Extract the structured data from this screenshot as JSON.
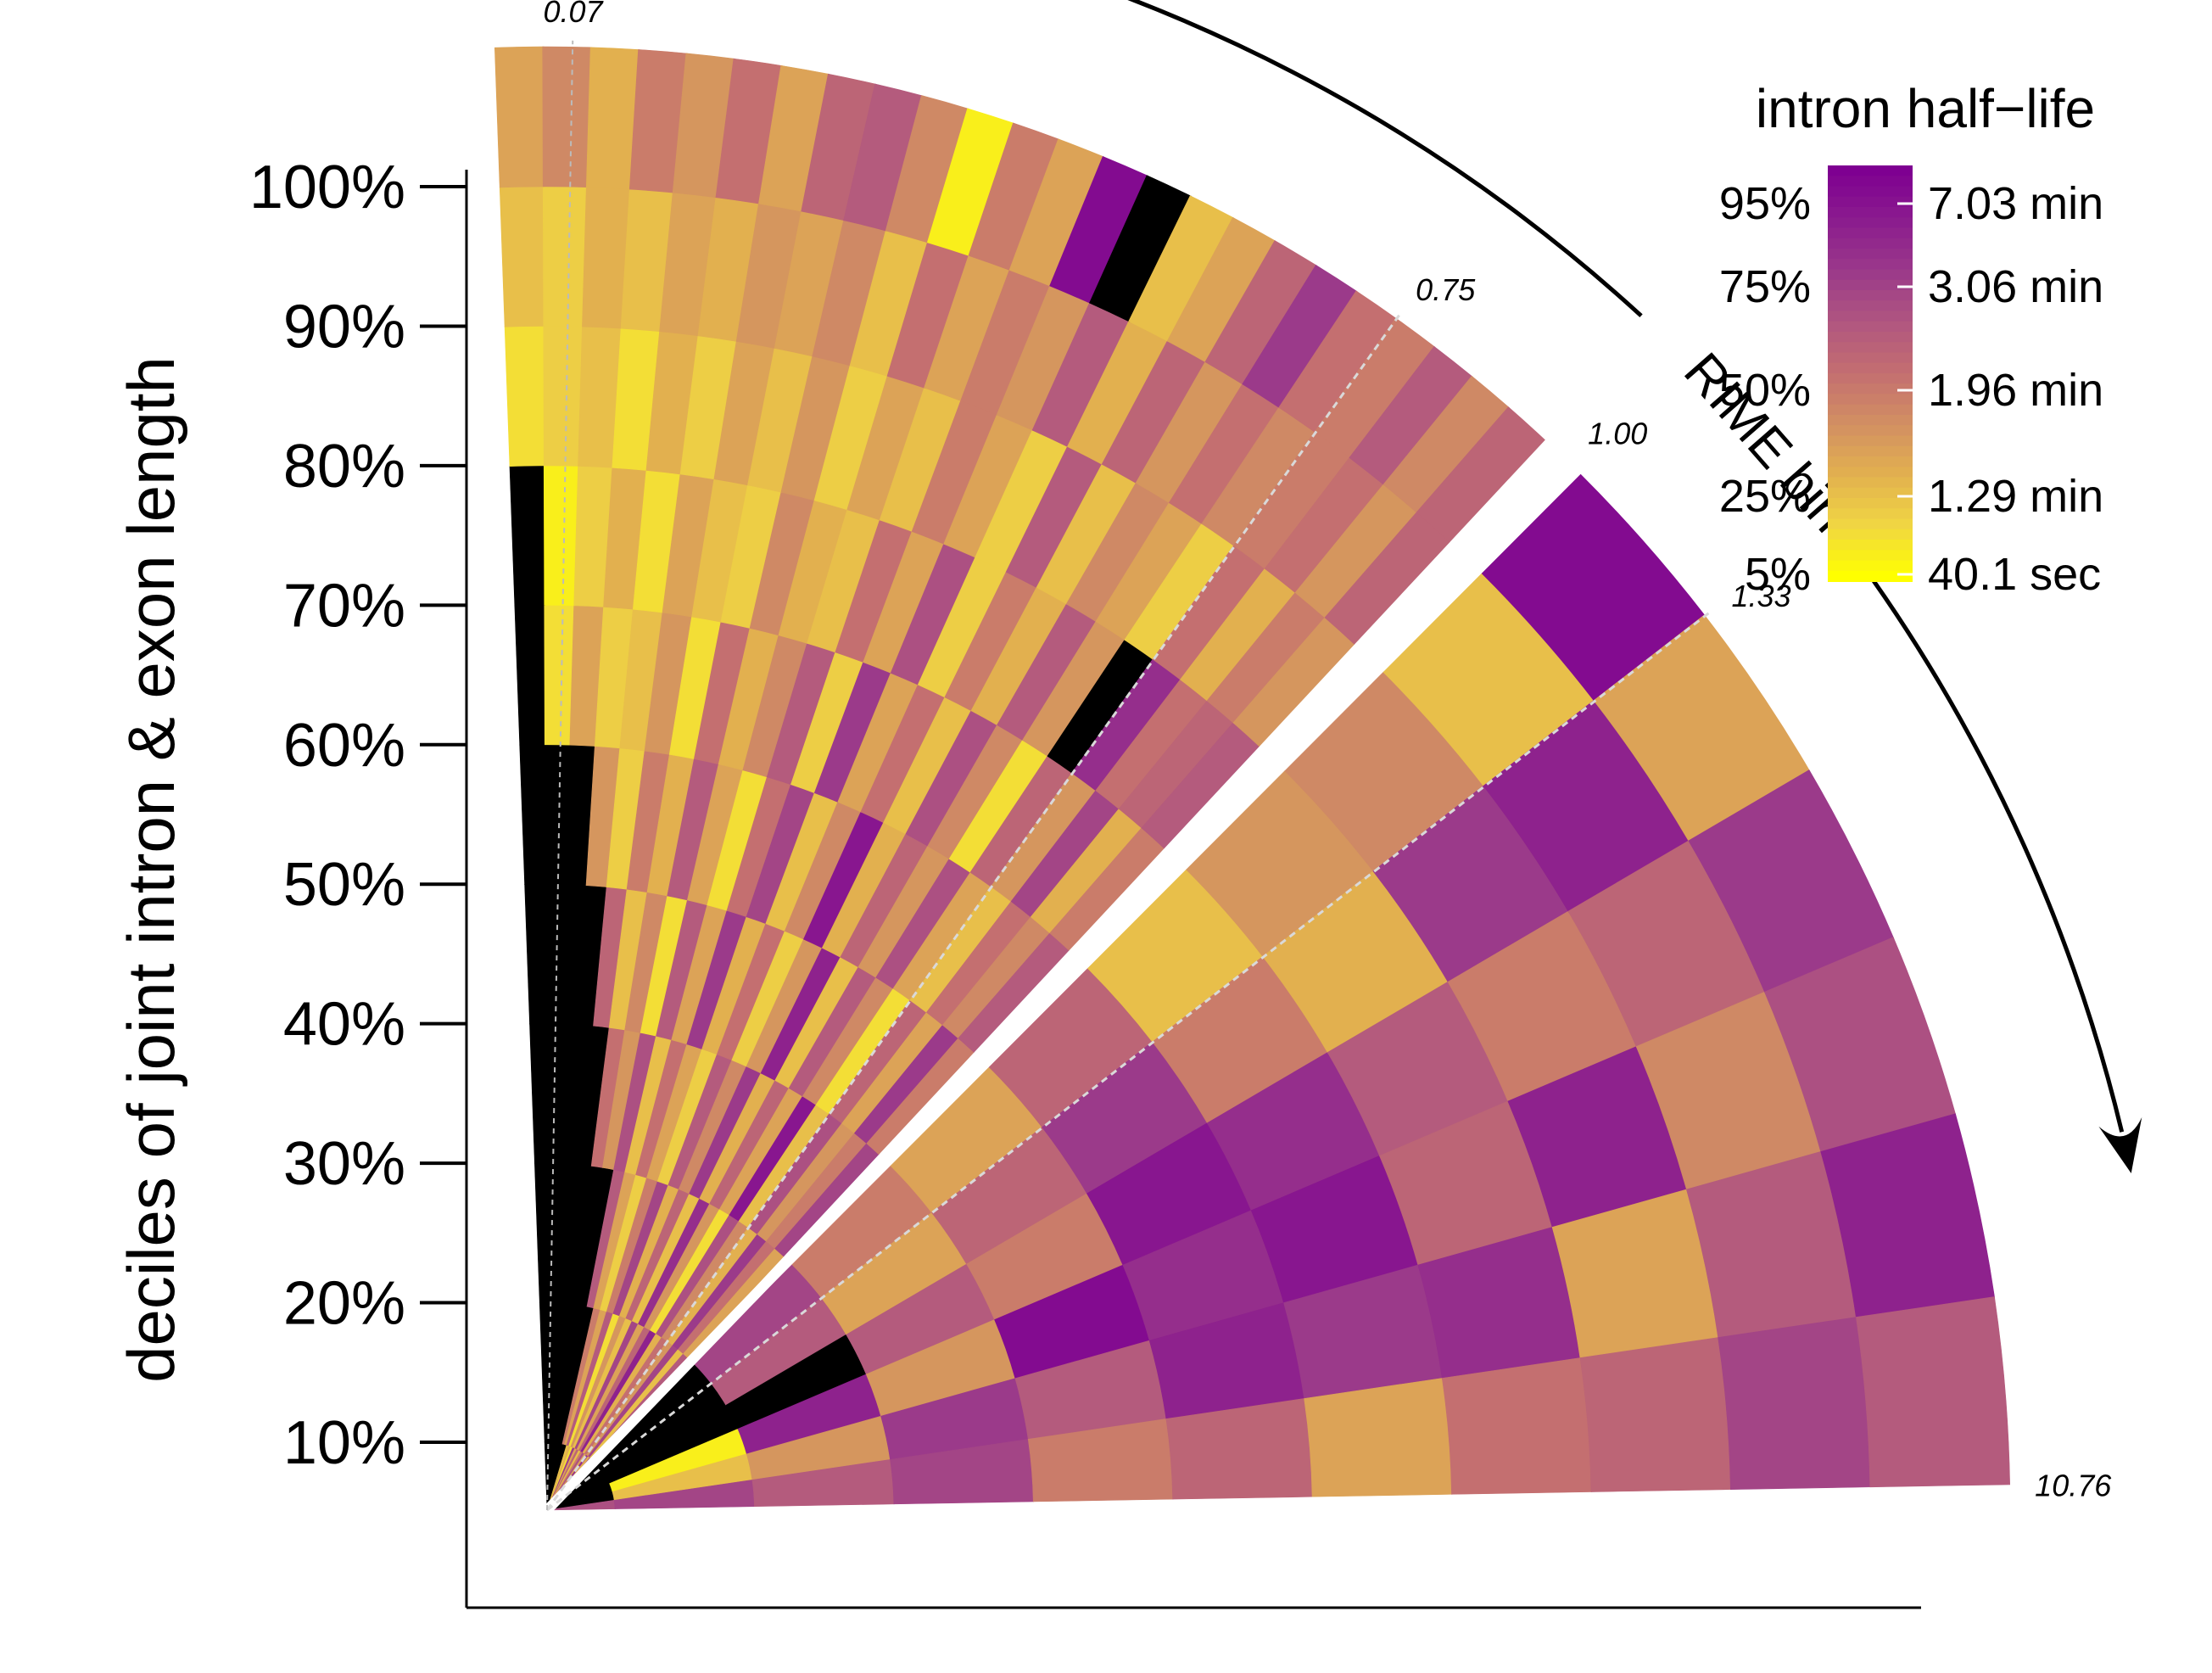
{
  "chart_data": {
    "type": "heatmap",
    "title": "",
    "ylabel": "deciles of joint intron & exon length",
    "y_ticks": [
      "10%",
      "20%",
      "30%",
      "40%",
      "50%",
      "60%",
      "70%",
      "80%",
      "90%",
      "100%"
    ],
    "angular_axis_label": "RIME bin",
    "bin_tick_labels": [
      "0.07",
      "0.75",
      "1.00",
      "1.33",
      "10.76"
    ],
    "bins_lt1": 24,
    "bins_gt1": 6,
    "rings": 11,
    "legend": {
      "title": "intron half−life",
      "percentiles": [
        "95%",
        "75%",
        "50%",
        "25%",
        "5%"
      ],
      "values": [
        "7.03 min",
        "3.06 min",
        "1.96 min",
        "1.29 min",
        "40.1 sec"
      ],
      "colormap": [
        "#ffff00",
        "#f0d643",
        "#e2b04f",
        "#d28f62",
        "#c46f70",
        "#b05680",
        "#9b3a8a",
        "#8b1c8e",
        "#7e0091"
      ],
      "colors": {
        "missing": "#000000",
        "split_line": "#ffffff"
      }
    },
    "cells": [
      [
        0,
        0,
        0,
        0,
        0,
        0,
        0,
        0,
        0,
        0,
        0.2,
        0.25,
        0.1,
        0.75,
        0.3,
        0.55,
        0.2,
        0.45,
        0.65,
        0.3,
        0.8,
        0.25,
        0.7,
        0.4
      ],
      [
        0,
        0,
        0,
        0,
        0,
        0,
        0,
        0,
        0.45,
        0.3,
        0.6,
        0.1,
        0.35,
        0.2,
        0.7,
        0.3,
        0.55,
        0.85,
        0.25,
        0.5,
        0.35,
        0.7,
        0.2,
        0.6
      ],
      [
        0,
        0,
        0,
        0,
        0,
        0,
        0,
        0.6,
        0.3,
        0.15,
        0.45,
        0.7,
        0.25,
        0.55,
        0.2,
        0.8,
        0.35,
        0.1,
        0.65,
        0.4,
        0.25,
        0.75,
        0.5,
        0.3
      ],
      [
        0,
        0,
        0,
        0,
        0,
        0.5,
        0.35,
        0.65,
        0.2,
        0.5,
        0.3,
        0.15,
        0.6,
        0.4,
        0.75,
        0.25,
        0.55,
        0.3,
        0.9,
        0.2,
        0.65,
        0.35,
        0.45,
        0.7
      ],
      [
        0,
        0,
        0,
        0,
        0.55,
        0.2,
        0.4,
        0.1,
        0.6,
        0.3,
        0.75,
        0.25,
        0.5,
        0.15,
        0.35,
        0.85,
        0.2,
        0.6,
        0.4,
        0.1,
        0.55,
        0.3,
        0.75,
        0.45
      ],
      [
        0,
        0,
        0,
        0.35,
        0.15,
        0.45,
        0.25,
        0.6,
        0.3,
        0.1,
        0.5,
        0.7,
        0.2,
        0.4,
        0.9,
        0.25,
        0.55,
        0.35,
        0.65,
        0.3,
        0.2,
        0.5,
        0.4,
        0.6
      ],
      [
        0,
        0.1,
        0.3,
        0.15,
        0.2,
        0.35,
        0.1,
        0.5,
        0.25,
        0.4,
        0.6,
        0.15,
        0.75,
        0.3,
        0.5,
        0.2,
        0.65,
        0.4,
        0.1,
        0.55,
        0.35,
        0.7,
        0.25,
        0.45
      ],
      [
        0,
        0.05,
        0.15,
        0.25,
        0.1,
        0.3,
        0.2,
        0.15,
        0.4,
        0.25,
        0.2,
        0.5,
        0.3,
        0.65,
        0.15,
        0.45,
        0.25,
        0.6,
        0.35,
        0.0,
        0.8,
        0.5,
        0.55,
        0.6
      ],
      [
        0.1,
        0.15,
        0.2,
        0.1,
        0.25,
        0.15,
        0.3,
        0.2,
        0.35,
        0.15,
        0.3,
        0.2,
        0.45,
        0.3,
        0.15,
        0.6,
        0.2,
        0.4,
        0.3,
        0.15,
        0.5,
        0.25,
        0.45,
        0.35
      ],
      [
        0.2,
        0.15,
        0.25,
        0.2,
        0.3,
        0.25,
        0.35,
        0.3,
        0.4,
        0.2,
        0.5,
        0.3,
        0.45,
        0.35,
        0.6,
        0.25,
        0.55,
        0.35,
        0.5,
        0.4,
        0.45,
        0.5,
        0.35,
        0.55
      ],
      [
        0.3,
        0.4,
        0.25,
        0.45,
        0.35,
        0.5,
        0.3,
        0.55,
        0.6,
        0.4,
        0.05,
        0.45,
        0.3,
        0.95,
        0.0,
        0.2,
        0.3,
        0.55,
        0.75,
        0.5,
        0.45,
        0.6,
        0.4,
        0.55
      ]
    ],
    "cells_gt1": [
      [
        0,
        0,
        0,
        0.0,
        0.0,
        0.65
      ],
      [
        0,
        0,
        0,
        0.05,
        0.2,
        0.7
      ],
      [
        0.7,
        0.6,
        0.0,
        0.85,
        0.35,
        0.6
      ],
      [
        0.45,
        0.3,
        0.6,
        0.35,
        0.75,
        0.7
      ],
      [
        0.3,
        0.55,
        0.45,
        0.95,
        0.6,
        0.45
      ],
      [
        0.55,
        0.75,
        0.9,
        0.8,
        0.85,
        0.55
      ],
      [
        0.2,
        0.45,
        0.8,
        0.9,
        0.75,
        0.3
      ],
      [
        0.35,
        0.25,
        0.6,
        0.55,
        0.8,
        0.5
      ],
      [
        0.4,
        0.75,
        0.45,
        0.85,
        0.3,
        0.55
      ],
      [
        0.2,
        0.85,
        0.55,
        0.4,
        0.6,
        0.7
      ],
      [
        0.95,
        0.3,
        0.75,
        0.65,
        0.85,
        0.6
      ]
    ]
  }
}
